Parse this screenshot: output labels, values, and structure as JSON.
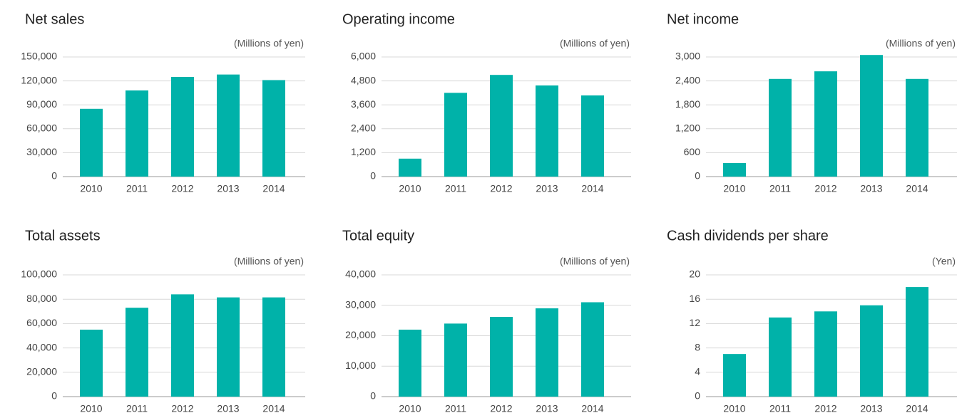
{
  "chart_data": [
    {
      "type": "bar",
      "title": "Net sales",
      "unit": "(Millions of yen)",
      "categories": [
        "2010",
        "2011",
        "2012",
        "2013",
        "2014"
      ],
      "values": [
        85000,
        108000,
        125000,
        128000,
        121000
      ],
      "color": "#00b2a9",
      "ylim": [
        0,
        150000
      ],
      "yticks": [
        0,
        {
          "value": 30000,
          "label": "30,000"
        },
        {
          "value": 60000,
          "label": "60,000"
        },
        {
          "value": 90000,
          "label": "90,000"
        },
        {
          "value": 120000,
          "label": "120,000"
        },
        {
          "value": 150000,
          "label": "150,000"
        }
      ],
      "grid": true
    },
    {
      "type": "bar",
      "title": "Operating income",
      "unit": "(Millions of yen)",
      "categories": [
        "2010",
        "2011",
        "2012",
        "2013",
        "2014"
      ],
      "values": [
        900,
        4200,
        5100,
        4570,
        4070
      ],
      "color": "#00b2a9",
      "ylim": [
        0,
        6000
      ],
      "yticks": [
        0,
        {
          "value": 1200,
          "label": "1,200"
        },
        {
          "value": 2400,
          "label": "2,400"
        },
        {
          "value": 3600,
          "label": "3,600"
        },
        {
          "value": 4800,
          "label": "4,800"
        },
        {
          "value": 6000,
          "label": "6,000"
        }
      ],
      "grid": true
    },
    {
      "type": "bar",
      "title": "Net income",
      "unit": "(Millions of yen)",
      "categories": [
        "2010",
        "2011",
        "2012",
        "2013",
        "2014"
      ],
      "values": [
        340,
        2450,
        2640,
        3050,
        2450
      ],
      "color": "#00b2a9",
      "ylim": [
        0,
        3000
      ],
      "yticks": [
        0,
        600,
        {
          "value": 1200,
          "label": "1,200"
        },
        {
          "value": 1800,
          "label": "1,800"
        },
        {
          "value": 2400,
          "label": "2,400"
        },
        {
          "value": 3000,
          "label": "3,000"
        }
      ],
      "grid": true
    },
    {
      "type": "bar",
      "title": "Total assets",
      "unit": "(Millions of yen)",
      "categories": [
        "2010",
        "2011",
        "2012",
        "2013",
        "2014"
      ],
      "values": [
        55000,
        73000,
        84000,
        81500,
        81500
      ],
      "color": "#00b2a9",
      "ylim": [
        0,
        100000
      ],
      "yticks": [
        0,
        {
          "value": 20000,
          "label": "20,000"
        },
        {
          "value": 40000,
          "label": "40,000"
        },
        {
          "value": 60000,
          "label": "60,000"
        },
        {
          "value": 80000,
          "label": "80,000"
        },
        {
          "value": 100000,
          "label": "100,000"
        }
      ],
      "grid": true
    },
    {
      "type": "bar",
      "title": "Total equity",
      "unit": "(Millions of yen)",
      "categories": [
        "2010",
        "2011",
        "2012",
        "2013",
        "2014"
      ],
      "values": [
        22000,
        24000,
        26200,
        29000,
        31000
      ],
      "color": "#00b2a9",
      "ylim": [
        0,
        40000
      ],
      "yticks": [
        0,
        {
          "value": 10000,
          "label": "10,000"
        },
        {
          "value": 20000,
          "label": "20,000"
        },
        {
          "value": 30000,
          "label": "30,000"
        },
        {
          "value": 40000,
          "label": "40,000"
        }
      ],
      "grid": true
    },
    {
      "type": "bar",
      "title": "Cash dividends per share",
      "unit": "(Yen)",
      "categories": [
        "2010",
        "2011",
        "2012",
        "2013",
        "2014"
      ],
      "values": [
        7,
        13,
        14,
        15,
        18
      ],
      "color": "#00b2a9",
      "ylim": [
        0,
        20
      ],
      "yticks": [
        0,
        4,
        8,
        12,
        16,
        20
      ],
      "grid": true
    }
  ]
}
